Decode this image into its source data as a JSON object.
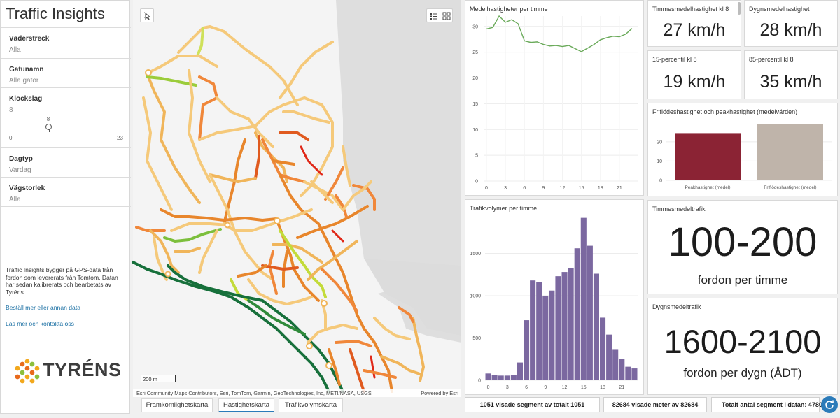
{
  "app": {
    "title": "Traffic Insights"
  },
  "filters": [
    {
      "label": "Väderstreck",
      "value": "Alla"
    },
    {
      "label": "Gatunamn",
      "value": "Alla gator"
    },
    {
      "label": "Klockslag",
      "value": "8"
    },
    {
      "label": "Dagtyp",
      "value": "Vardag"
    },
    {
      "label": "Vägstorlek",
      "value": "Alla"
    }
  ],
  "hour_slider": {
    "current": "8",
    "min": "0",
    "max": "23",
    "level": 0.348
  },
  "info": {
    "text": "Traffic Insights bygger på GPS-data från fordon som levererats från Tomtom. Datan har sedan kalibrerats och bearbetats av Tyréns.",
    "link_order": "Beställ mer eller annan data",
    "link_contact": "Läs mer och kontakta oss"
  },
  "logo": {
    "text": "TYRÉNS"
  },
  "map": {
    "scale_label": "200 m",
    "attribution": "Esri Community Maps Contributors, Esri, TomTom, Garmin, GeoTechnologies, Inc, METI/NASA, USGS",
    "powered_by": "Powered by Esri",
    "buttons": {
      "select": "select-icon",
      "legend": "list-icon",
      "basemap": "grid-icon"
    }
  },
  "tabs": [
    {
      "label": "Framkomlighetskarta"
    },
    {
      "label": "Hastighetskarta"
    },
    {
      "label": "Trafikvolymskarta"
    }
  ],
  "active_tab": 1,
  "speed_chart": {
    "title": "Medelhastigheter per timme",
    "chart_data": {
      "type": "line",
      "x": [
        0,
        1,
        2,
        3,
        4,
        5,
        6,
        7,
        8,
        9,
        10,
        11,
        12,
        13,
        14,
        15,
        16,
        17,
        18,
        19,
        20,
        21,
        22,
        23
      ],
      "values": [
        29.5,
        29.8,
        32.0,
        30.8,
        31.3,
        30.5,
        27.2,
        26.9,
        27.0,
        26.5,
        26.2,
        26.3,
        26.1,
        26.3,
        25.7,
        25.1,
        25.8,
        26.5,
        27.4,
        27.8,
        28.1,
        28.0,
        28.5,
        29.6
      ],
      "ylim": [
        0,
        32
      ],
      "yticks": [
        0,
        5,
        10,
        15,
        20,
        25,
        30
      ],
      "xticks": [
        0,
        3,
        6,
        9,
        12,
        15,
        18,
        21
      ],
      "color": "#6aaa5a",
      "grid": true
    }
  },
  "volume_chart": {
    "title": "Trafikvolymer per timme",
    "chart_data": {
      "type": "bar",
      "x": [
        0,
        1,
        2,
        3,
        4,
        5,
        6,
        7,
        8,
        9,
        10,
        11,
        12,
        13,
        14,
        15,
        16,
        17,
        18,
        19,
        20,
        21,
        22,
        23
      ],
      "values": [
        80,
        60,
        55,
        55,
        65,
        210,
        710,
        1180,
        1160,
        1000,
        1060,
        1230,
        1280,
        1330,
        1560,
        1920,
        1590,
        1260,
        740,
        540,
        360,
        250,
        160,
        140
      ],
      "ylim": [
        0,
        1950
      ],
      "yticks": [
        0,
        500,
        1000,
        1500
      ],
      "xticks": [
        0,
        3,
        6,
        9,
        12,
        15,
        18,
        21
      ],
      "color": "#7b68a0",
      "grid": true
    }
  },
  "kpis": [
    {
      "title": "Timmesmedelhastighet kl 8",
      "value": "27 km/h"
    },
    {
      "title": "Dygnsmedelhastighet",
      "value": "28 km/h"
    },
    {
      "title": "15-percentil kl 8",
      "value": "19 km/h"
    },
    {
      "title": "85-percentil kl 8",
      "value": "35 km/h"
    }
  ],
  "freeflow_chart": {
    "title": "Friflödeshastighet och peakhastighet (medelvärden)",
    "chart_data": {
      "type": "bar",
      "categories": [
        "Peakhastighet (medel)",
        "Friflödeshastighet (medel)"
      ],
      "values": [
        24.5,
        29
      ],
      "colors": [
        "#8b2334",
        "#bfb4aa"
      ],
      "ylim": [
        0,
        29
      ],
      "yticks": [
        0,
        10,
        20
      ],
      "grid": true
    }
  },
  "hourly_traffic": {
    "title": "Timmesmedeltrafik",
    "value": "100-200",
    "unit": "fordon per timme"
  },
  "daily_traffic": {
    "title": "Dygnsmedeltrafik",
    "value": "1600-2100",
    "unit": "fordon per dygn (ÅDT)"
  },
  "status": {
    "segments_shown": "1051 visade segment av totalt 1051",
    "meters_shown": "82684 visade meter av 82684",
    "total_segments": "Totalt antal segment i datan: 4780"
  }
}
